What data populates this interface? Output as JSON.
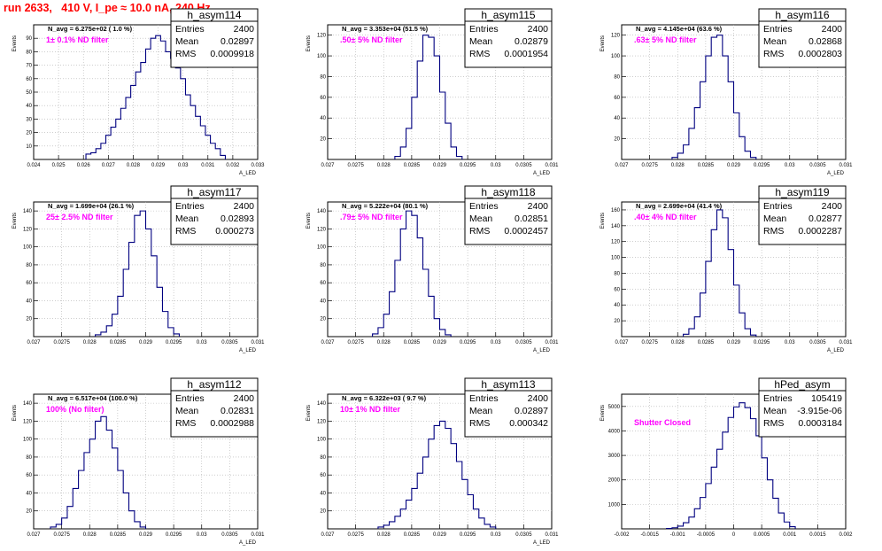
{
  "page_title": "run 2633,   410 V, I_pe ≈ 10.0 nA, 240 Hz",
  "colors": {
    "histogram": "#000080",
    "title": "#ff0000",
    "annotation": "#ff00ff",
    "grid": "#b0b0b0"
  },
  "chart_data": [
    {
      "type": "bar",
      "name": "h_asym114",
      "stats": {
        "entries_label": "Entries",
        "entries": "2400",
        "mean_label": "Mean",
        "mean": "0.02897",
        "rms_label": "RMS",
        "rms": "0.0009918"
      },
      "navg": "N_avg = 6.275e+02 ( 1.0 %)",
      "filter": "1± 0.1% ND filter",
      "xlabel": "A_LED",
      "ylabel": "Events",
      "xlim": [
        0.024,
        0.033
      ],
      "ylim": [
        0,
        100
      ],
      "xticks": [
        "0.024",
        "0.025",
        "0.026",
        "0.027",
        "0.028",
        "0.029",
        "0.03",
        "0.031",
        "0.032",
        "0.033"
      ],
      "yticks": [
        "10",
        "20",
        "30",
        "40",
        "50",
        "60",
        "70",
        "80",
        "90"
      ],
      "x": [
        0.0262,
        0.0264,
        0.0266,
        0.0268,
        0.027,
        0.0272,
        0.0274,
        0.0276,
        0.0278,
        0.028,
        0.0282,
        0.0284,
        0.0286,
        0.0288,
        0.029,
        0.0292,
        0.0294,
        0.0296,
        0.0298,
        0.03,
        0.0302,
        0.0304,
        0.0306,
        0.0308,
        0.031,
        0.0312,
        0.0314,
        0.0316
      ],
      "values": [
        4,
        5,
        8,
        12,
        18,
        24,
        30,
        38,
        46,
        55,
        65,
        72,
        82,
        90,
        92,
        88,
        80,
        75,
        68,
        60,
        48,
        40,
        32,
        25,
        18,
        12,
        8,
        3
      ]
    },
    {
      "type": "bar",
      "name": "h_asym115",
      "stats": {
        "entries_label": "Entries",
        "entries": "2400",
        "mean_label": "Mean",
        "mean": "0.02879",
        "rms_label": "RMS",
        "rms": "0.0001954"
      },
      "navg": "N_avg = 3.353e+04 (51.5 %)",
      "filter": ".50± 5% ND filter",
      "xlabel": "A_LED",
      "ylabel": "Events",
      "xlim": [
        0.027,
        0.031
      ],
      "ylim": [
        0,
        130
      ],
      "xticks": [
        "0.027",
        "0.0275",
        "0.028",
        "0.0285",
        "0.029",
        "0.0295",
        "0.03",
        "0.0305",
        "0.031"
      ],
      "yticks": [
        "20",
        "40",
        "60",
        "80",
        "100",
        "120"
      ],
      "x": [
        0.02825,
        0.02835,
        0.02845,
        0.02855,
        0.02865,
        0.02875,
        0.02885,
        0.02895,
        0.02905,
        0.02915,
        0.02925,
        0.02935
      ],
      "values": [
        3,
        12,
        30,
        60,
        95,
        120,
        118,
        100,
        65,
        35,
        12,
        3
      ]
    },
    {
      "type": "bar",
      "name": "h_asym116",
      "stats": {
        "entries_label": "Entries",
        "entries": "2400",
        "mean_label": "Mean",
        "mean": "0.02868",
        "rms_label": "RMS",
        "rms": "0.0002803"
      },
      "navg": "N_avg = 4.145e+04 (63.6 %)",
      "filter": ".63± 5% ND filter",
      "xlabel": "A_LED",
      "ylabel": "Events",
      "xlim": [
        0.027,
        0.031
      ],
      "ylim": [
        0,
        130
      ],
      "xticks": [
        "0.027",
        "0.0275",
        "0.028",
        "0.0285",
        "0.029",
        "0.0295",
        "0.03",
        "0.0305",
        "0.031"
      ],
      "yticks": [
        "20",
        "40",
        "60",
        "80",
        "100",
        "120"
      ],
      "x": [
        0.02795,
        0.02805,
        0.02815,
        0.02825,
        0.02835,
        0.02845,
        0.02855,
        0.02865,
        0.02875,
        0.02885,
        0.02895,
        0.02905,
        0.02915,
        0.02925,
        0.02935
      ],
      "values": [
        2,
        6,
        14,
        30,
        50,
        75,
        100,
        118,
        120,
        100,
        75,
        45,
        22,
        8,
        2
      ]
    },
    {
      "type": "bar",
      "name": "h_asym117",
      "stats": {
        "entries_label": "Entries",
        "entries": "2400",
        "mean_label": "Mean",
        "mean": "0.02893",
        "rms_label": "RMS",
        "rms": "0.000273"
      },
      "navg": "N_avg = 1.699e+04 (26.1 %)",
      "filter": "25± 2.5% ND filter",
      "xlabel": "A_LED",
      "ylabel": "Events",
      "xlim": [
        0.027,
        0.031
      ],
      "ylim": [
        0,
        150
      ],
      "xticks": [
        "0.027",
        "0.0275",
        "0.028",
        "0.0285",
        "0.029",
        "0.0295",
        "0.03",
        "0.0305",
        "0.031"
      ],
      "yticks": [
        "20",
        "40",
        "60",
        "80",
        "100",
        "120",
        "140"
      ],
      "x": [
        0.02815,
        0.02825,
        0.02835,
        0.02845,
        0.02855,
        0.02865,
        0.02875,
        0.02885,
        0.02895,
        0.02905,
        0.02915,
        0.02925,
        0.02935,
        0.02945,
        0.02955
      ],
      "values": [
        2,
        5,
        12,
        25,
        45,
        75,
        105,
        135,
        140,
        120,
        90,
        55,
        28,
        10,
        3
      ]
    },
    {
      "type": "bar",
      "name": "h_asym118",
      "stats": {
        "entries_label": "Entries",
        "entries": "2400",
        "mean_label": "Mean",
        "mean": "0.02851",
        "rms_label": "RMS",
        "rms": "0.0002457"
      },
      "navg": "N_avg = 5.222e+04 (80.1 %)",
      "filter": ".79± 5% ND filter",
      "xlabel": "A_LED",
      "ylabel": "Events",
      "xlim": [
        0.027,
        0.031
      ],
      "ylim": [
        0,
        150
      ],
      "xticks": [
        "0.027",
        "0.0275",
        "0.028",
        "0.0285",
        "0.029",
        "0.0295",
        "0.03",
        "0.0305",
        "0.031"
      ],
      "yticks": [
        "20",
        "40",
        "60",
        "80",
        "100",
        "120",
        "140"
      ],
      "x": [
        0.02785,
        0.02795,
        0.02805,
        0.02815,
        0.02825,
        0.02835,
        0.02845,
        0.02855,
        0.02865,
        0.02875,
        0.02885,
        0.02895,
        0.02905,
        0.02915
      ],
      "values": [
        3,
        10,
        25,
        50,
        85,
        120,
        140,
        135,
        110,
        75,
        45,
        20,
        8,
        2
      ]
    },
    {
      "type": "bar",
      "name": "h_asym119",
      "stats": {
        "entries_label": "Entries",
        "entries": "2400",
        "mean_label": "Mean",
        "mean": "0.02877",
        "rms_label": "RMS",
        "rms": "0.0002287"
      },
      "navg": "N_avg = 2.699e+04 (41.4 %)",
      "filter": ".40± 4% ND filter",
      "xlabel": "A_LED",
      "ylabel": "Events",
      "xlim": [
        0.027,
        0.031
      ],
      "ylim": [
        0,
        170
      ],
      "xticks": [
        "0.027",
        "0.0275",
        "0.028",
        "0.0285",
        "0.029",
        "0.0295",
        "0.03",
        "0.0305",
        "0.031"
      ],
      "yticks": [
        "20",
        "40",
        "60",
        "80",
        "100",
        "120",
        "140",
        "160"
      ],
      "x": [
        0.02815,
        0.02825,
        0.02835,
        0.02845,
        0.02855,
        0.02865,
        0.02875,
        0.02885,
        0.02895,
        0.02905,
        0.02915,
        0.02925,
        0.02935
      ],
      "values": [
        3,
        10,
        25,
        55,
        95,
        135,
        160,
        150,
        110,
        65,
        30,
        10,
        2
      ]
    },
    {
      "type": "bar",
      "name": "h_asym112",
      "stats": {
        "entries_label": "Entries",
        "entries": "2400",
        "mean_label": "Mean",
        "mean": "0.02831",
        "rms_label": "RMS",
        "rms": "0.0002988"
      },
      "navg": "N_avg = 6.517e+04 (100.0 %)",
      "filter": "100% (No filter)",
      "xlabel": "A_LED",
      "ylabel": "Events",
      "xlim": [
        0.027,
        0.031
      ],
      "ylim": [
        0,
        150
      ],
      "xticks": [
        "0.027",
        "0.0275",
        "0.028",
        "0.0285",
        "0.029",
        "0.0295",
        "0.03",
        "0.0305",
        "0.031"
      ],
      "yticks": [
        "20",
        "40",
        "60",
        "80",
        "100",
        "120",
        "140"
      ],
      "x": [
        0.02735,
        0.02745,
        0.02755,
        0.02765,
        0.02775,
        0.02785,
        0.02795,
        0.02805,
        0.02815,
        0.02825,
        0.02835,
        0.02845,
        0.02855,
        0.02865,
        0.02875,
        0.02885,
        0.02895
      ],
      "values": [
        2,
        5,
        12,
        25,
        45,
        65,
        85,
        100,
        120,
        125,
        110,
        90,
        65,
        40,
        20,
        8,
        2
      ]
    },
    {
      "type": "bar",
      "name": "h_asym113",
      "stats": {
        "entries_label": "Entries",
        "entries": "2400",
        "mean_label": "Mean",
        "mean": "0.02897",
        "rms_label": "RMS",
        "rms": "0.000342"
      },
      "navg": "N_avg = 6.322e+03 ( 9.7 %)",
      "filter": "10± 1% ND filter",
      "xlabel": "A_LED",
      "ylabel": "Events",
      "xlim": [
        0.027,
        0.031
      ],
      "ylim": [
        0,
        150
      ],
      "xticks": [
        "0.027",
        "0.0275",
        "0.028",
        "0.0285",
        "0.029",
        "0.0295",
        "0.03",
        "0.0305",
        "0.031"
      ],
      "yticks": [
        "20",
        "40",
        "60",
        "80",
        "100",
        "120",
        "140"
      ],
      "x": [
        0.02795,
        0.02805,
        0.02815,
        0.02825,
        0.02835,
        0.02845,
        0.02855,
        0.02865,
        0.02875,
        0.02885,
        0.02895,
        0.02905,
        0.02915,
        0.02925,
        0.02935,
        0.02945,
        0.02955,
        0.02965,
        0.02975,
        0.02985,
        0.02995
      ],
      "values": [
        2,
        4,
        8,
        14,
        22,
        32,
        45,
        62,
        80,
        100,
        115,
        120,
        112,
        95,
        75,
        55,
        38,
        22,
        12,
        5,
        2
      ]
    },
    {
      "type": "bar",
      "name": "hPed_asym",
      "stats": {
        "entries_label": "Entries",
        "entries": "105419",
        "mean_label": "Mean",
        "mean": "-3.915e-06",
        "rms_label": "RMS",
        "rms": "0.0003184"
      },
      "navg": "",
      "filter": "Shutter Closed",
      "xlabel": "",
      "ylabel": "Events",
      "xlim": [
        -0.002,
        0.002
      ],
      "ylim": [
        0,
        5500
      ],
      "xticks": [
        "-0.002",
        "-0.0015",
        "-0.001",
        "-0.0005",
        "0",
        "0.0005",
        "0.001",
        "0.0015",
        "0.002"
      ],
      "yticks": [
        "1000",
        "2000",
        "3000",
        "4000",
        "5000"
      ],
      "x": [
        -0.00115,
        -0.00105,
        -0.00095,
        -0.00085,
        -0.00075,
        -0.00065,
        -0.00055,
        -0.00045,
        -0.00035,
        -0.00025,
        -0.00015,
        -5e-05,
        5e-05,
        0.00015,
        0.00025,
        0.00035,
        0.00045,
        0.00055,
        0.00065,
        0.00075,
        0.00085,
        0.00095,
        0.00105
      ],
      "values": [
        15,
        45,
        110,
        250,
        480,
        820,
        1280,
        1850,
        2520,
        3250,
        3950,
        4550,
        4980,
        5150,
        4950,
        4500,
        3800,
        2900,
        2000,
        1250,
        650,
        280,
        90
      ]
    }
  ]
}
